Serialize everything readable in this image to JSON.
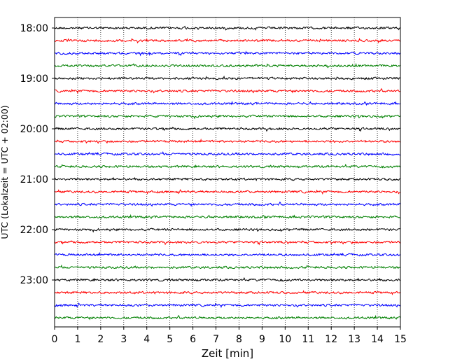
{
  "chart_data": {
    "type": "line",
    "title": "",
    "xlabel": "Zeit  [min]",
    "ylabel": "UTC (Lokalzeit = UTC + 02:00)",
    "xlim": [
      0,
      15
    ],
    "x_ticks": [
      "0",
      "1",
      "2",
      "3",
      "4",
      "5",
      "6",
      "7",
      "8",
      "9",
      "10",
      "11",
      "12",
      "13",
      "14",
      "15"
    ],
    "y_ticks": [
      "18:00",
      "19:00",
      "20:00",
      "21:00",
      "22:00",
      "23:00"
    ],
    "grid": "vertical dotted at each minute",
    "trace_interval_minutes": 15,
    "start_time": "18:00",
    "trace_count": 24,
    "trace_colors": [
      "#000000",
      "#ff0000",
      "#0000ff",
      "#008000"
    ]
  }
}
